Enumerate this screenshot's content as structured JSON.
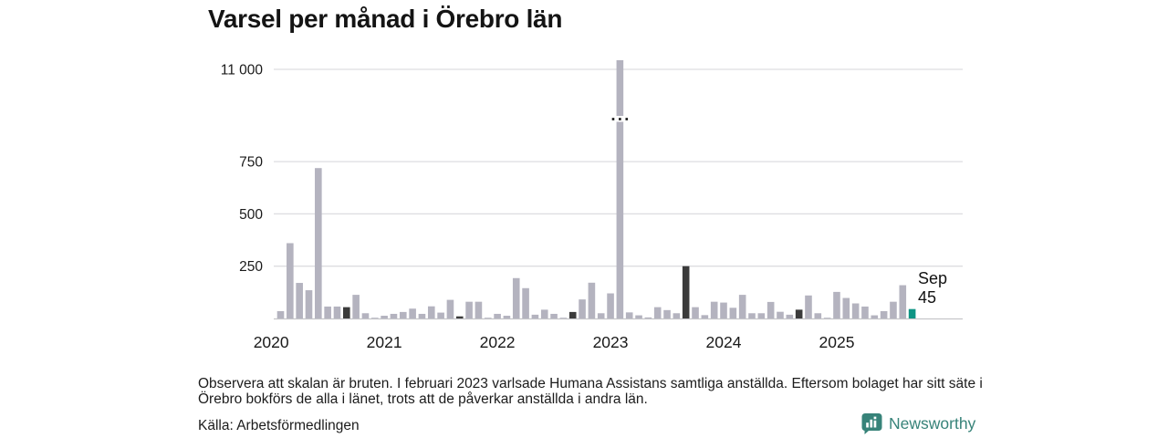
{
  "title": "Varsel per månad i Örebro län",
  "note": "Observera att skalan är bruten. I februari 2023 varlsade Humana Assistans samtliga anställda. Eftersom bolaget har sitt säte i Örebro bokförs de alla i länet, trots att de påverkar anställda i andra län.",
  "source": "Källa: Arbetsförmedlingen",
  "brand": "Newsworthy",
  "colors": {
    "bar_default": "#b4b3bf",
    "bar_highlight_september": "#3b3b3b",
    "bar_current": "#0e9484",
    "gridline": "#dddde0",
    "axis_line": "#c6c6ca",
    "text": "#1a1a1a",
    "brand_teal": "#378379",
    "break_dots": "#111111"
  },
  "chart_data": {
    "type": "bar",
    "title": "Varsel per månad i Örebro län",
    "xlabel": "",
    "ylabel": "",
    "start_month": "2020-02",
    "end_month": "2025-09",
    "values": [
      35,
      360,
      170,
      135,
      719,
      57,
      57,
      54,
      113,
      25,
      2,
      13,
      22,
      31,
      47,
      22,
      58,
      28,
      89,
      10,
      80,
      80,
      2,
      22,
      13,
      193,
      145,
      18,
      42,
      22,
      2,
      31,
      91,
      171,
      25,
      120,
      11000,
      29,
      15,
      5,
      54,
      40,
      25,
      250,
      54,
      16,
      80,
      76,
      51,
      113,
      25,
      25,
      79,
      32,
      18,
      42,
      110,
      25,
      2,
      127,
      98,
      72,
      57,
      15,
      35,
      80,
      159,
      45
    ],
    "highlight_indices": [
      7,
      19,
      31,
      43,
      55
    ],
    "highlight_meaning": "september varje år markeras i mörkgrått",
    "current_index": 67,
    "broken_index": 36,
    "broken_bar": {
      "month": "2023-02",
      "value": 11000
    },
    "broken_axis": true,
    "x_ticks": [
      "2020",
      "2021",
      "2022",
      "2023",
      "2024",
      "2025"
    ],
    "y_ticks": [
      {
        "label": "250",
        "value": 250
      },
      {
        "label": "500",
        "value": 500
      },
      {
        "label": "750",
        "value": 750
      },
      {
        "label": "11 000",
        "value": 11000
      }
    ],
    "ylim": [
      0,
      750
    ],
    "grid": true,
    "legend_position": "none",
    "annotation": {
      "month": "Sep",
      "value": "45"
    }
  }
}
